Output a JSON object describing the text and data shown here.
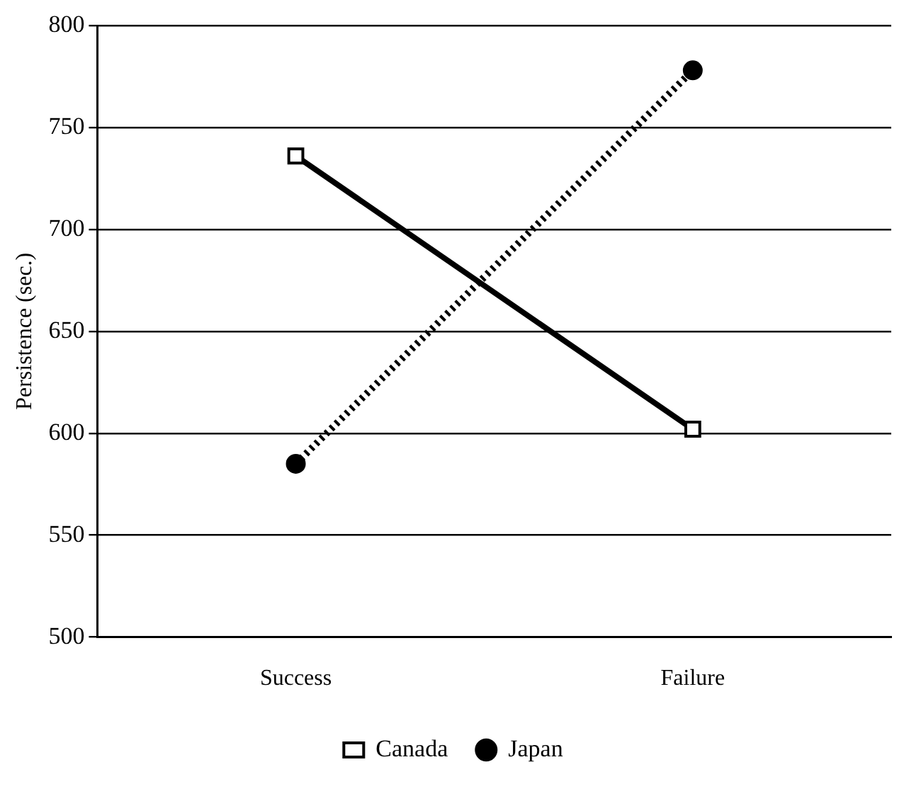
{
  "chart_data": {
    "type": "line",
    "ylabel": "Persistence (sec.)",
    "categories": [
      "Success",
      "Failure"
    ],
    "series": [
      {
        "name": "Canada",
        "color": "#000000",
        "values": [
          736,
          602
        ],
        "marker": "square",
        "line_style": "solid"
      },
      {
        "name": "Japan",
        "color": "#000000",
        "values": [
          585,
          778
        ],
        "marker": "circle",
        "line_style": "dotted"
      }
    ],
    "ylim": [
      500,
      800
    ],
    "yticks": [
      500,
      550,
      600,
      650,
      700,
      750,
      800
    ],
    "grid": "y",
    "legend": "bottom"
  }
}
